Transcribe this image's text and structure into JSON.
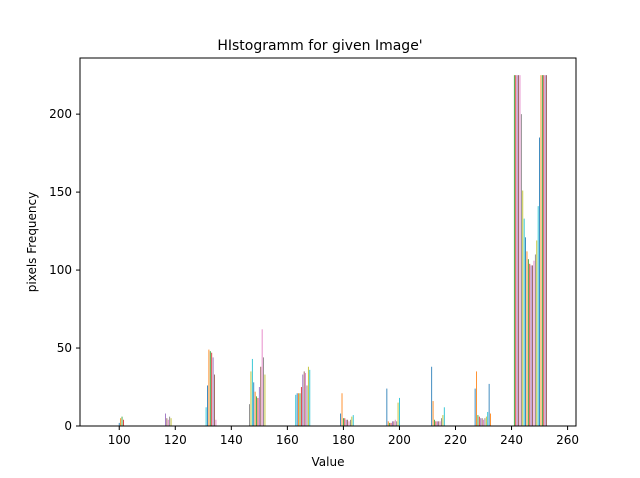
{
  "chart_data": {
    "type": "bar",
    "title": "HIstogramm for given Image'",
    "xlabel": "Value",
    "ylabel": "pixels Frequency",
    "xlim": [
      86,
      263
    ],
    "ylim": [
      0,
      236
    ],
    "xticks": [
      100,
      120,
      140,
      160,
      180,
      200,
      220,
      240,
      260
    ],
    "yticks": [
      0,
      50,
      100,
      150,
      200
    ],
    "grid": false,
    "legend": "none",
    "series_colors": [
      "#1f77b4",
      "#ff7f0e",
      "#2ca02c",
      "#d62728",
      "#9467bd",
      "#8c564b",
      "#e377c2",
      "#7f7f7f",
      "#bcbd22",
      "#17becf"
    ],
    "bars": [
      [
        100,
        2
      ],
      [
        100.5,
        5
      ],
      [
        101,
        6
      ],
      [
        101.5,
        4
      ],
      [
        116.5,
        8
      ],
      [
        117,
        5
      ],
      [
        117.5,
        4
      ],
      [
        118,
        6
      ],
      [
        118.5,
        5
      ],
      [
        131,
        12
      ],
      [
        131.5,
        26
      ],
      [
        132,
        49
      ],
      [
        132.5,
        48
      ],
      [
        133,
        47
      ],
      [
        133.5,
        44
      ],
      [
        134,
        33
      ],
      [
        134.5,
        4
      ],
      [
        146.5,
        14
      ],
      [
        147,
        35
      ],
      [
        147.5,
        43
      ],
      [
        148,
        28
      ],
      [
        148.5,
        22
      ],
      [
        149,
        19
      ],
      [
        149.5,
        18
      ],
      [
        150,
        25
      ],
      [
        150.5,
        38
      ],
      [
        151,
        62
      ],
      [
        151.5,
        44
      ],
      [
        152,
        33
      ],
      [
        163,
        20
      ],
      [
        163.5,
        21
      ],
      [
        164,
        21
      ],
      [
        164.5,
        21
      ],
      [
        165,
        25
      ],
      [
        165.5,
        33
      ],
      [
        166,
        35
      ],
      [
        166.5,
        34
      ],
      [
        167,
        26
      ],
      [
        167.5,
        38
      ],
      [
        168,
        36
      ],
      [
        179,
        8
      ],
      [
        179.5,
        21
      ],
      [
        180,
        5
      ],
      [
        180.5,
        5
      ],
      [
        181,
        4
      ],
      [
        181.5,
        4
      ],
      [
        182,
        3
      ],
      [
        182.5,
        4
      ],
      [
        183,
        6
      ],
      [
        183.5,
        7
      ],
      [
        195.5,
        24
      ],
      [
        196,
        3
      ],
      [
        196.5,
        2
      ],
      [
        197,
        2
      ],
      [
        197.5,
        3
      ],
      [
        198,
        3
      ],
      [
        198.5,
        4
      ],
      [
        199,
        3
      ],
      [
        199.5,
        15
      ],
      [
        200,
        18
      ],
      [
        211.5,
        38
      ],
      [
        212,
        16
      ],
      [
        212.5,
        4
      ],
      [
        213,
        3
      ],
      [
        213.5,
        3
      ],
      [
        214,
        3
      ],
      [
        214.5,
        3
      ],
      [
        215,
        5
      ],
      [
        215.5,
        7
      ],
      [
        216,
        12
      ],
      [
        227,
        24
      ],
      [
        227.5,
        35
      ],
      [
        228,
        7
      ],
      [
        228.5,
        6
      ],
      [
        229,
        5
      ],
      [
        229.5,
        5
      ],
      [
        230,
        4
      ],
      [
        230.5,
        5
      ],
      [
        231,
        6
      ],
      [
        231.5,
        9
      ],
      [
        232,
        27
      ],
      [
        232.5,
        8
      ],
      [
        241,
        225
      ],
      [
        241.5,
        225
      ],
      [
        242,
        225
      ],
      [
        242.5,
        225
      ],
      [
        243,
        225
      ],
      [
        243.5,
        200
      ],
      [
        244,
        151
      ],
      [
        244.5,
        133
      ],
      [
        245,
        121
      ],
      [
        245.5,
        112
      ],
      [
        246,
        107
      ],
      [
        246.5,
        104
      ],
      [
        247,
        103
      ],
      [
        247.5,
        103
      ],
      [
        248,
        106
      ],
      [
        248.5,
        110
      ],
      [
        249,
        119
      ],
      [
        249.5,
        141
      ],
      [
        250,
        185
      ],
      [
        250.5,
        225
      ],
      [
        251,
        225
      ],
      [
        251.5,
        225
      ],
      [
        252,
        225
      ],
      [
        252.5,
        225
      ]
    ]
  }
}
